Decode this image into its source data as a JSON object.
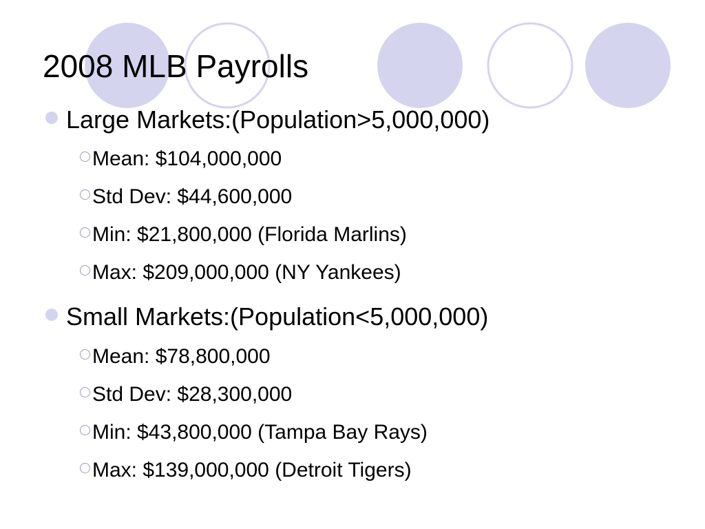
{
  "slide": {
    "title": "2008 MLB Payrolls",
    "accent_color": "#d4d4ee",
    "bullets": [
      {
        "text": "Large Markets:(Population>5,000,000)",
        "sub": [
          "Mean: $104,000,000",
          "Std Dev: $44,600,000",
          "Min: $21,800,000 (Florida Marlins)",
          "Max: $209,000,000 (NY Yankees)"
        ]
      },
      {
        "text": "Small Markets:(Population<5,000,000)",
        "sub": [
          "Mean: $78,800,000",
          "Std Dev: $28,300,000",
          "Min: $43,800,000 (Tampa Bay Rays)",
          "Max: $139,000,000 (Detroit Tigers)"
        ]
      }
    ]
  }
}
